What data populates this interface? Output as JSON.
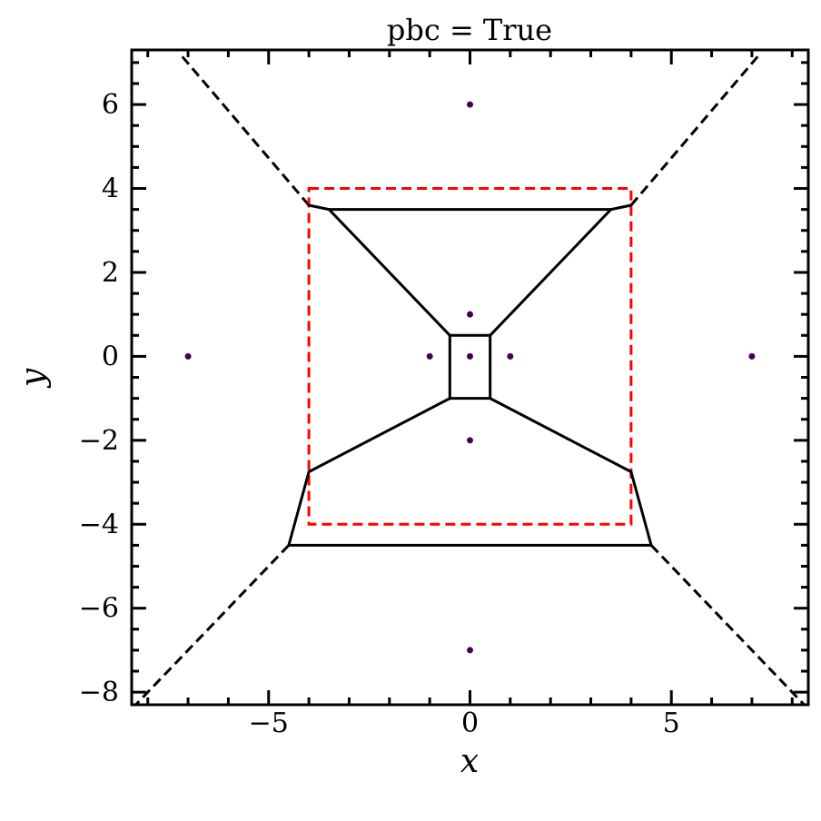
{
  "chart_data": {
    "type": "scatter",
    "title": "pbc = True",
    "xlabel": "x",
    "ylabel": "y",
    "xlim": [
      -8.4,
      8.4
    ],
    "ylim": [
      -8.3,
      7.3
    ],
    "x_ticks": [
      -5,
      0,
      5
    ],
    "x_tick_labels": [
      "−5",
      "0",
      "5"
    ],
    "y_ticks": [
      -8,
      -6,
      -4,
      -2,
      0,
      2,
      4,
      6
    ],
    "y_tick_labels": [
      "−8",
      "−6",
      "−4",
      "−2",
      "0",
      "2",
      "4",
      "6"
    ],
    "grid": false,
    "points": {
      "color": "#440154",
      "x": [
        0,
        0,
        1,
        -1,
        0,
        0,
        0,
        7,
        -7
      ],
      "y": [
        0,
        1,
        0,
        0,
        -2,
        6,
        -7,
        0,
        0
      ]
    },
    "voronoi_edges": {
      "color": "#000000",
      "segments": [
        [
          [
            -0.5,
            0.5
          ],
          [
            0.5,
            0.5
          ]
        ],
        [
          [
            0.5,
            0.5
          ],
          [
            0.5,
            -1.0
          ]
        ],
        [
          [
            0.5,
            -1.0
          ],
          [
            -0.5,
            -1.0
          ]
        ],
        [
          [
            -0.5,
            -1.0
          ],
          [
            -0.5,
            0.5
          ]
        ],
        [
          [
            -0.5,
            0.5
          ],
          [
            -3.5,
            3.5
          ]
        ],
        [
          [
            0.5,
            0.5
          ],
          [
            3.5,
            3.5
          ]
        ],
        [
          [
            -3.5,
            3.5
          ],
          [
            3.5,
            3.5
          ]
        ],
        [
          [
            -3.5,
            3.5
          ],
          [
            -4.0,
            3.6
          ]
        ],
        [
          [
            3.5,
            3.5
          ],
          [
            4.0,
            3.6
          ]
        ],
        [
          [
            -0.5,
            -1.0
          ],
          [
            -4.0,
            -2.75
          ]
        ],
        [
          [
            0.5,
            -1.0
          ],
          [
            4.0,
            -2.75
          ]
        ],
        [
          [
            -4.0,
            -2.75
          ],
          [
            -4.5,
            -4.5
          ]
        ],
        [
          [
            4.0,
            -2.75
          ],
          [
            4.5,
            -4.5
          ]
        ],
        [
          [
            -4.5,
            -4.5
          ],
          [
            4.5,
            -4.5
          ]
        ]
      ]
    },
    "voronoi_rays": {
      "color": "#000000",
      "style": "dashed",
      "segments": [
        [
          [
            -4.0,
            3.6
          ],
          [
            -7.15,
            7.15
          ]
        ],
        [
          [
            4.0,
            3.6
          ],
          [
            7.15,
            7.15
          ]
        ],
        [
          [
            -4.5,
            -4.5
          ],
          [
            -8.3,
            -8.3
          ]
        ],
        [
          [
            4.5,
            -4.5
          ],
          [
            8.3,
            -8.3
          ]
        ]
      ]
    },
    "cell_box": {
      "color": "#ff0000",
      "style": "dashed",
      "x": [
        -4,
        4
      ],
      "y": [
        -4,
        4
      ]
    }
  }
}
